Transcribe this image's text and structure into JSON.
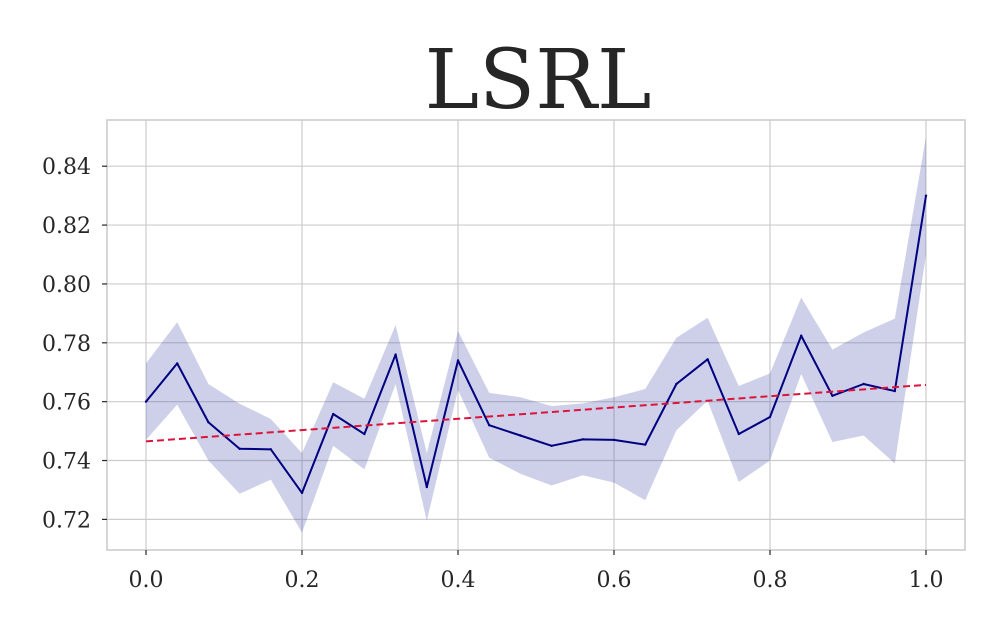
{
  "chart_data": {
    "type": "line",
    "title": "LSRL",
    "xlabel": "",
    "ylabel": "",
    "xlim": [
      -0.05,
      1.05
    ],
    "ylim": [
      0.7096,
      0.8557
    ],
    "xticks": [
      0.0,
      0.2,
      0.4,
      0.6,
      0.8,
      1.0
    ],
    "xtick_labels": [
      "0.0",
      "0.2",
      "0.4",
      "0.6",
      "0.8",
      "1.0"
    ],
    "yticks": [
      0.72,
      0.74,
      0.76,
      0.78,
      0.8,
      0.82,
      0.84
    ],
    "ytick_labels": [
      "0.72",
      "0.74",
      "0.76",
      "0.78",
      "0.80",
      "0.82",
      "0.84"
    ],
    "grid": true,
    "series": [
      {
        "kind": "mean_line_with_band",
        "color": "#000080",
        "band_color": "#3f48a8",
        "x": [
          0.0,
          0.04,
          0.08,
          0.12,
          0.16,
          0.2,
          0.24,
          0.28,
          0.32,
          0.36,
          0.4,
          0.44,
          0.48,
          0.52,
          0.56,
          0.6,
          0.64,
          0.68,
          0.72,
          0.76,
          0.8,
          0.84,
          0.88,
          0.92,
          0.96,
          1.0
        ],
        "y": [
          0.76,
          0.773,
          0.753,
          0.744,
          0.7438,
          0.729,
          0.7558,
          0.749,
          0.776,
          0.731,
          0.774,
          0.752,
          0.7485,
          0.745,
          0.7472,
          0.747,
          0.7454,
          0.766,
          0.7744,
          0.749,
          0.7548,
          0.7824,
          0.762,
          0.766,
          0.7636,
          0.83
        ],
        "lower": [
          0.747,
          0.759,
          0.74,
          0.7287,
          0.7335,
          0.7155,
          0.745,
          0.737,
          0.766,
          0.7195,
          0.764,
          0.741,
          0.7355,
          0.7315,
          0.735,
          0.7325,
          0.7265,
          0.7503,
          0.7603,
          0.7327,
          0.74,
          0.7694,
          0.7463,
          0.7485,
          0.739,
          0.81
        ]
      },
      {
        "kind": "trend_line",
        "dashed": true,
        "color": "#dc143c",
        "x": [
          0.0,
          1.0
        ],
        "y": [
          0.7465,
          0.7657
        ]
      }
    ]
  }
}
